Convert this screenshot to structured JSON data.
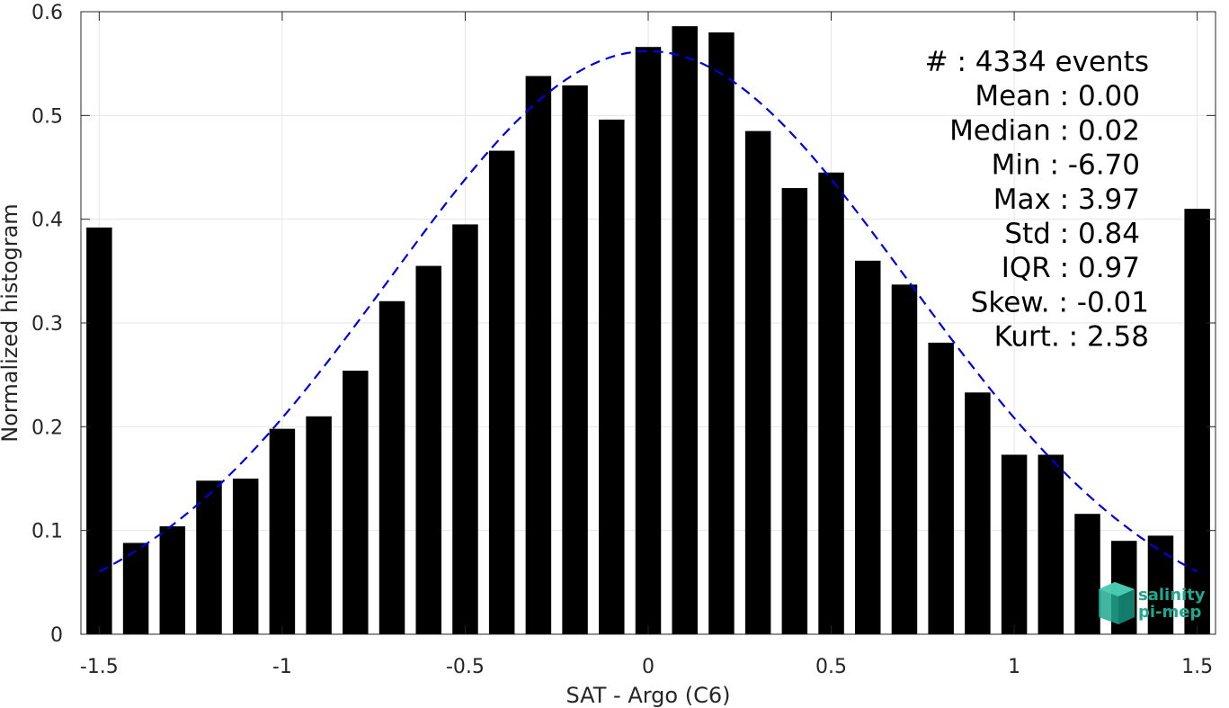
{
  "chart_data": {
    "type": "bar",
    "xlabel": "SAT - Argo (C6)",
    "ylabel": "Normalized histogram",
    "xlim": [
      -1.55,
      1.55
    ],
    "ylim": [
      0,
      0.6
    ],
    "grid": true,
    "xticks": [
      -1.5,
      -1,
      -0.5,
      0,
      0.5,
      1,
      1.5
    ],
    "xtick_labels": [
      "-1.5",
      "-1",
      "-0.5",
      "0",
      "0.5",
      "1",
      "1.5"
    ],
    "yticks": [
      0,
      0.1,
      0.2,
      0.3,
      0.4,
      0.5,
      0.6
    ],
    "ytick_labels": [
      "0",
      "0.1",
      "0.2",
      "0.3",
      "0.4",
      "0.5",
      "0.6"
    ],
    "bar_color": "#000000",
    "bar_width": 0.07,
    "bins": [
      -1.5,
      -1.4,
      -1.3,
      -1.2,
      -1.1,
      -1.0,
      -0.9,
      -0.8,
      -0.7,
      -0.6,
      -0.5,
      -0.4,
      -0.3,
      -0.2,
      -0.1,
      0.0,
      0.1,
      0.2,
      0.3,
      0.4,
      0.5,
      0.6,
      0.7,
      0.8,
      0.9,
      1.0,
      1.1,
      1.2,
      1.3,
      1.4,
      1.5
    ],
    "values": [
      0.392,
      0.088,
      0.104,
      0.148,
      0.15,
      0.198,
      0.21,
      0.254,
      0.321,
      0.355,
      0.395,
      0.466,
      0.538,
      0.529,
      0.496,
      0.566,
      0.586,
      0.58,
      0.485,
      0.43,
      0.445,
      0.36,
      0.337,
      0.281,
      0.233,
      0.173,
      0.173,
      0.116,
      0.09,
      0.095,
      0.41
    ],
    "fit": {
      "style": "dashed",
      "color": "#0000dd",
      "mean": 0.0,
      "std": 0.71,
      "peak": 0.562,
      "x_range": [
        -1.5,
        1.5
      ]
    },
    "annotations": [
      "#  : 4334 events",
      "Mean : 0.00",
      "Median : 0.02",
      "Min : -6.70",
      "Max : 3.97",
      "Std : 0.84",
      "IQR : 0.97",
      "Skew. : -0.01",
      "Kurt. : 2.58"
    ]
  },
  "logo": {
    "line1": "salinity",
    "line2": "pi-mep",
    "color": "#1fa88f"
  }
}
